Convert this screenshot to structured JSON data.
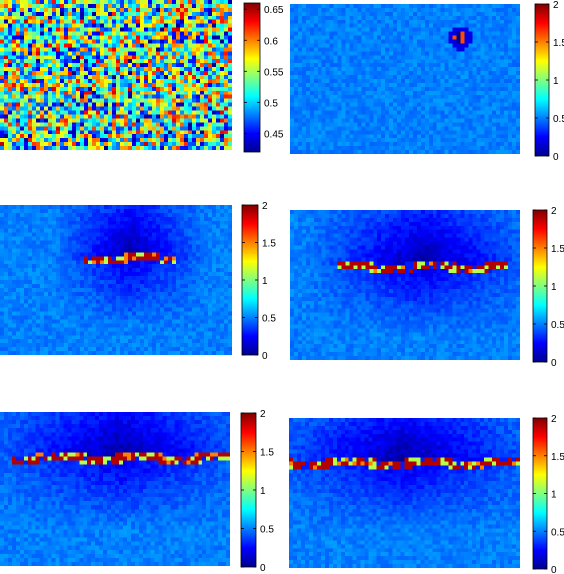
{
  "chart_data": [
    {
      "type": "heatmap",
      "colormap": "jet",
      "colorbar": {
        "range": [
          0.42,
          0.66
        ],
        "ticks": [
          "0.65",
          "0.6",
          "0.55",
          "0.5",
          "0.45"
        ],
        "tick_values": [
          0.65,
          0.6,
          0.55,
          0.5,
          0.45
        ]
      },
      "field": "random noise",
      "noise_mean": 0.53
    },
    {
      "type": "heatmap",
      "colormap": "jet",
      "colorbar": {
        "range": [
          0,
          2
        ],
        "ticks": [
          "2",
          "1.5",
          "1",
          "0.5",
          "0"
        ],
        "tick_values": [
          2,
          1.5,
          1,
          0.5,
          0
        ]
      },
      "field": "background ~0.5 with point defect",
      "background": 0.5,
      "defect_x": [
        0.74,
        0.74
      ]
    },
    {
      "type": "heatmap",
      "colormap": "jet",
      "colorbar": {
        "range": [
          0,
          2
        ],
        "ticks": [
          "2",
          "1.5",
          "1",
          "0.5",
          "0"
        ],
        "tick_values": [
          2,
          1.5,
          1,
          0.5,
          0
        ]
      },
      "field": "background ~0.5 with crack",
      "background": 0.5,
      "crack_x": [
        0.37,
        0.76
      ],
      "crack_y": 0.36
    },
    {
      "type": "heatmap",
      "colormap": "jet",
      "colorbar": {
        "range": [
          0,
          2
        ],
        "ticks": [
          "2",
          "1.5",
          "1",
          "0.5",
          "0"
        ],
        "tick_values": [
          2,
          1.5,
          1,
          0.5,
          0
        ]
      },
      "field": "background ~0.5 with crack",
      "background": 0.5,
      "crack_x": [
        0.21,
        0.95
      ],
      "crack_y": 0.38
    },
    {
      "type": "heatmap",
      "colormap": "jet",
      "colorbar": {
        "range": [
          0,
          2
        ],
        "ticks": [
          "2",
          "1.5",
          "1",
          "0.5",
          "0"
        ],
        "tick_values": [
          2,
          1.5,
          1,
          0.5,
          0
        ]
      },
      "field": "background ~0.5 with crack",
      "background": 0.5,
      "crack_x": [
        0.05,
        1.0
      ],
      "crack_y": 0.3
    },
    {
      "type": "heatmap",
      "colormap": "jet",
      "colorbar": {
        "range": [
          0,
          2
        ],
        "ticks": [
          "2",
          "1.5",
          "1",
          "0.5",
          "0"
        ],
        "tick_values": [
          2,
          1.5,
          1,
          0.5,
          0
        ]
      },
      "field": "background ~0.5 with crack",
      "background": 0.5,
      "crack_x": [
        0.0,
        1.0
      ],
      "crack_y": 0.3
    }
  ]
}
